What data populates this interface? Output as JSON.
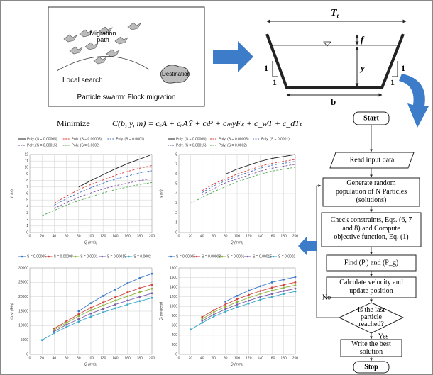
{
  "diagram": {
    "swarm": {
      "migration": [
        "Migration",
        "path"
      ],
      "local": "Local search",
      "destination": "Destination",
      "caption": "Particle swarm: Flock migration"
    },
    "channel": {
      "top": "T",
      "top_sub": "t",
      "freeboard": "f",
      "depth": "y",
      "base": "b",
      "slope_v": "1",
      "slope_h": "1"
    },
    "objective": {
      "label": "Minimize",
      "formula": "C(b, y, m) = cₑA + cᵣAȲ + cₗP + cₘyFₛ + c_wT + c_dTₜ"
    },
    "flow": {
      "start": "Start",
      "read": "Read input data",
      "generate": [
        "Generate random",
        "population of N Particles",
        "(solutions)"
      ],
      "check": [
        "Check constraints, Eqs. (6, 7",
        "and 8) and Compute",
        "objective function, Eq. (1)"
      ],
      "find": "Find (Pᵢ) and (P_g)",
      "velocity": [
        "Calculate velocity and",
        "update position"
      ],
      "decision": [
        "Is the last",
        "particle",
        "reached?"
      ],
      "write": [
        "Write the best",
        "solution"
      ],
      "stop": "Stop",
      "no": "No",
      "yes": "Yes"
    }
  },
  "chart_data": [
    {
      "type": "line",
      "xlabel": "Q (m³/s)",
      "ylabel": "b (m)",
      "x": [
        20,
        40,
        60,
        80,
        100,
        120,
        140,
        160,
        180,
        200
      ],
      "xlim": [
        0,
        200
      ],
      "xticks": [
        0,
        20,
        40,
        60,
        80,
        100,
        120,
        140,
        160,
        180,
        200
      ],
      "ylim": [
        0,
        12
      ],
      "yticks": [
        0,
        1,
        2,
        3,
        4,
        5,
        6,
        7,
        8,
        9,
        10,
        11,
        12
      ],
      "grid": true,
      "markers": false,
      "series": [
        {
          "name": "Poly. (S = 0.00005)",
          "color": "#222222",
          "dashed": false,
          "values": [
            null,
            null,
            null,
            7.0,
            8.0,
            8.9,
            9.8,
            10.6,
            11.3,
            12.0
          ]
        },
        {
          "name": "Poly. (S = 0.00008)",
          "color": "#e0352f",
          "dashed": true,
          "values": [
            null,
            4.5,
            5.6,
            6.6,
            7.4,
            8.1,
            8.8,
            9.4,
            9.9,
            10.3
          ]
        },
        {
          "name": "Poly. (S = 0.0001)",
          "color": "#3a6fc4",
          "dashed": true,
          "values": [
            null,
            4.2,
            5.2,
            6.1,
            6.9,
            7.6,
            8.2,
            8.7,
            9.2,
            9.5
          ]
        },
        {
          "name": "Poly. (S = 0.00015)",
          "color": "#7a4fa0",
          "dashed": true,
          "values": [
            null,
            3.7,
            4.6,
            5.4,
            6.1,
            6.7,
            7.2,
            7.6,
            8.0,
            8.3
          ]
        },
        {
          "name": "Poly. (S = 0.0002)",
          "color": "#4fa84f",
          "dashed": true,
          "values": [
            2.6,
            3.4,
            4.2,
            4.9,
            5.5,
            6.1,
            6.6,
            7.0,
            7.4,
            7.7
          ]
        }
      ]
    },
    {
      "type": "line",
      "xlabel": "Q (m³/s)",
      "ylabel": "y (m)",
      "x": [
        20,
        40,
        60,
        80,
        100,
        120,
        140,
        160,
        180,
        200
      ],
      "xlim": [
        0,
        200
      ],
      "xticks": [
        0,
        20,
        40,
        60,
        80,
        100,
        120,
        140,
        160,
        180,
        200
      ],
      "ylim": [
        0,
        8
      ],
      "yticks": [
        0,
        1,
        2,
        3,
        4,
        5,
        6,
        7,
        8
      ],
      "grid": true,
      "markers": false,
      "series": [
        {
          "name": "Poly. (S = 0.00005)",
          "color": "#222222",
          "dashed": false,
          "values": [
            null,
            null,
            null,
            6.0,
            6.5,
            6.9,
            7.3,
            7.6,
            7.8,
            8.0
          ]
        },
        {
          "name": "Poly. (S = 0.00008)",
          "color": "#e0352f",
          "dashed": true,
          "values": [
            null,
            4.3,
            5.0,
            5.5,
            6.0,
            6.4,
            6.8,
            7.1,
            7.3,
            7.5
          ]
        },
        {
          "name": "Poly. (S = 0.0001)",
          "color": "#3a6fc4",
          "dashed": true,
          "values": [
            null,
            4.1,
            4.8,
            5.3,
            5.8,
            6.2,
            6.6,
            6.9,
            7.1,
            7.3
          ]
        },
        {
          "name": "Poly. (S = 0.00015)",
          "color": "#7a4fa0",
          "dashed": true,
          "values": [
            null,
            3.9,
            4.5,
            5.1,
            5.5,
            5.9,
            6.3,
            6.6,
            6.8,
            7.0
          ]
        },
        {
          "name": "Poly. (S = 0.0002)",
          "color": "#4fa84f",
          "dashed": true,
          "values": [
            3.0,
            3.6,
            4.2,
            4.7,
            5.2,
            5.6,
            6.0,
            6.3,
            6.5,
            6.7
          ]
        }
      ]
    },
    {
      "type": "line",
      "xlabel": "Q (m³/s)",
      "ylabel": "Cost ($/m)",
      "x": [
        20,
        40,
        60,
        80,
        100,
        120,
        140,
        160,
        180,
        200
      ],
      "xlim": [
        0,
        200
      ],
      "xticks": [
        0,
        20,
        40,
        60,
        80,
        100,
        120,
        140,
        160,
        180,
        200
      ],
      "ylim": [
        0,
        30000
      ],
      "yticks": [
        0,
        5000,
        10000,
        15000,
        20000,
        25000,
        30000
      ],
      "grid": true,
      "markers": true,
      "series": [
        {
          "name": "S = 0.00005",
          "color": "#3a78c8",
          "dashed": false,
          "values": [
            null,
            null,
            null,
            15000,
            17800,
            20300,
            22500,
            24700,
            26500,
            28000
          ]
        },
        {
          "name": "S = 0.00008",
          "color": "#d0403a",
          "dashed": false,
          "values": [
            null,
            9000,
            11500,
            14000,
            16200,
            18000,
            19800,
            21500,
            23000,
            24200
          ]
        },
        {
          "name": "S = 0.0001",
          "color": "#8cb43c",
          "dashed": false,
          "values": [
            null,
            8500,
            11000,
            13300,
            15300,
            17000,
            18700,
            20200,
            21600,
            22800
          ]
        },
        {
          "name": "S = 0.00015",
          "color": "#7a5aa6",
          "dashed": false,
          "values": [
            null,
            8000,
            10300,
            12300,
            14200,
            15800,
            17300,
            18700,
            20000,
            21200
          ]
        },
        {
          "name": "S = 0.0002",
          "color": "#36a8c8",
          "dashed": false,
          "values": [
            5000,
            7400,
            9500,
            11400,
            13100,
            14600,
            16000,
            17300,
            18500,
            19600
          ]
        }
      ]
    },
    {
      "type": "line",
      "xlabel": "Q (m³/s)",
      "ylabel": "Qₗ (m³/year)",
      "x": [
        20,
        40,
        60,
        80,
        100,
        120,
        140,
        160,
        180,
        200
      ],
      "xlim": [
        0,
        200
      ],
      "xticks": [
        0,
        20,
        40,
        60,
        80,
        100,
        120,
        140,
        160,
        180,
        200
      ],
      "ylim": [
        0,
        1800
      ],
      "yticks": [
        0,
        200,
        400,
        600,
        800,
        1000,
        1200,
        1400,
        1600,
        1800
      ],
      "grid": true,
      "markers": true,
      "series": [
        {
          "name": "S = 0.00005",
          "color": "#3a78c8",
          "dashed": false,
          "values": [
            null,
            null,
            null,
            1100,
            1220,
            1330,
            1420,
            1500,
            1560,
            1610
          ]
        },
        {
          "name": "S = 0.00008",
          "color": "#d0403a",
          "dashed": false,
          "values": [
            null,
            780,
            920,
            1040,
            1150,
            1240,
            1320,
            1390,
            1450,
            1500
          ]
        },
        {
          "name": "S = 0.0001",
          "color": "#8cb43c",
          "dashed": false,
          "values": [
            null,
            740,
            880,
            990,
            1090,
            1180,
            1260,
            1330,
            1390,
            1440
          ]
        },
        {
          "name": "S = 0.00015",
          "color": "#7a5aa6",
          "dashed": false,
          "values": [
            null,
            700,
            830,
            940,
            1040,
            1120,
            1200,
            1260,
            1320,
            1370
          ]
        },
        {
          "name": "S = 0.0002",
          "color": "#36a8c8",
          "dashed": false,
          "values": [
            520,
            660,
            790,
            890,
            980,
            1060,
            1140,
            1200,
            1260,
            1310
          ]
        }
      ]
    }
  ]
}
